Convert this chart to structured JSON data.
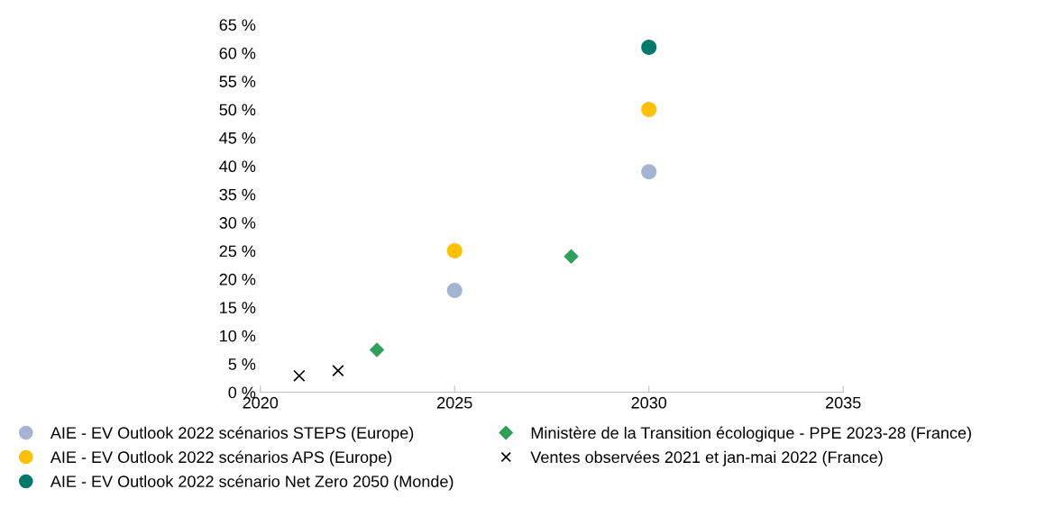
{
  "chart_data": {
    "type": "scatter",
    "series": [
      {
        "name": "AIE - EV Outlook 2022 scénarios STEPS (Europe)",
        "color": "#a5b4d3",
        "marker": "circle",
        "x": [
          2025,
          2030
        ],
        "values": [
          18,
          39
        ]
      },
      {
        "name": "AIE - EV Outlook 2022 scénarios APS (Europe)",
        "color": "#ffc000",
        "marker": "circle",
        "x": [
          2025,
          2030
        ],
        "values": [
          25,
          50
        ]
      },
      {
        "name": "AIE - EV Outlook 2022 scénario Net Zero 2050 (Monde)",
        "color": "#00786c",
        "marker": "circle",
        "x": [
          2030
        ],
        "values": [
          61
        ]
      },
      {
        "name": "Ministère de la Transition écologique - PPE 2023-28 (France)",
        "color": "#2ea05a",
        "marker": "diamond",
        "x": [
          2023,
          2028
        ],
        "values": [
          7.5,
          24
        ]
      },
      {
        "name": "Ventes observées 2021 et jan-mai 2022 (France)",
        "color": "#000000",
        "marker": "cross",
        "x": [
          2021,
          2022
        ],
        "values": [
          2.9,
          3.8
        ]
      }
    ],
    "xlim": [
      2020,
      2035
    ],
    "xticks": [
      2020,
      2025,
      2030,
      2035
    ],
    "ylim": [
      0,
      65
    ],
    "yticks": [
      {
        "value": 0,
        "label": "0 %"
      },
      {
        "value": 5,
        "label": "5 %"
      },
      {
        "value": 10,
        "label": "10 %"
      },
      {
        "value": 15,
        "label": "15 %"
      },
      {
        "value": 20,
        "label": "20 %"
      },
      {
        "value": 25,
        "label": "25 %"
      },
      {
        "value": 30,
        "label": "30 %"
      },
      {
        "value": 35,
        "label": "35 %"
      },
      {
        "value": 40,
        "label": "40 %"
      },
      {
        "value": 45,
        "label": "45 %"
      },
      {
        "value": 50,
        "label": "50 %"
      },
      {
        "value": 55,
        "label": "55 %"
      },
      {
        "value": 60,
        "label": "60 %"
      },
      {
        "value": 65,
        "label": "65 %"
      }
    ],
    "grid": false,
    "legend": "bottom"
  }
}
